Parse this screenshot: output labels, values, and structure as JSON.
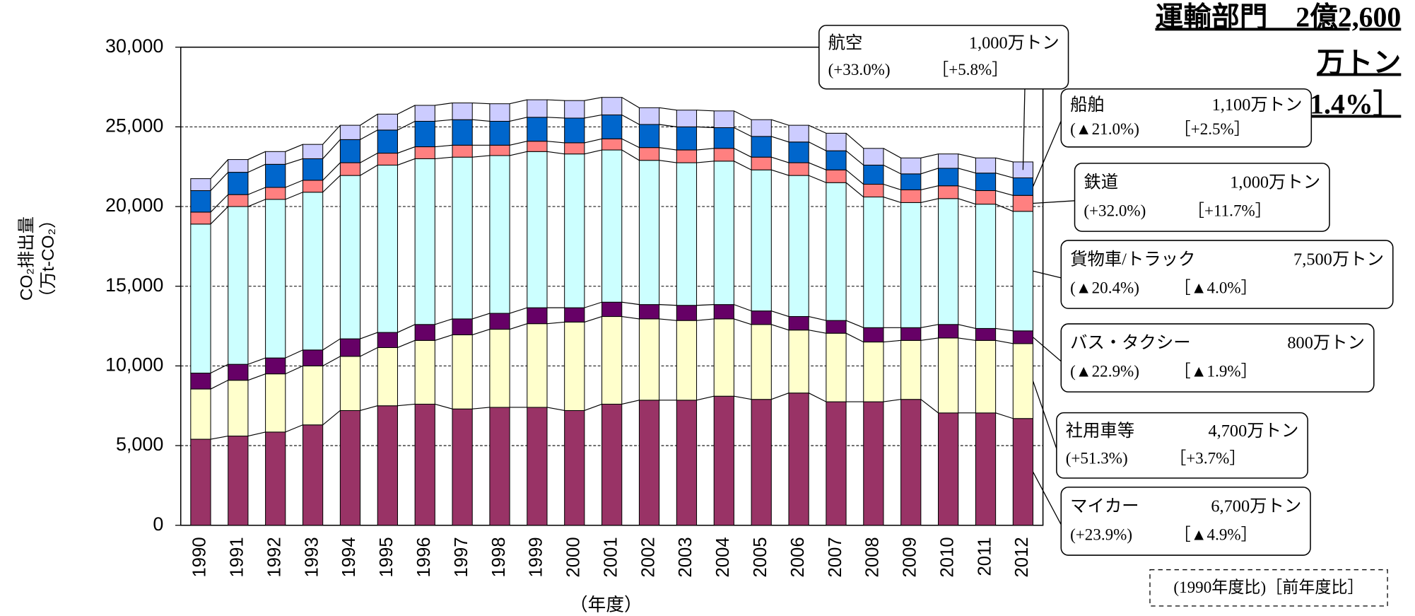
{
  "chart_data": {
    "type": "stacked_bar",
    "title_lines": [
      "運輸部門　2億2,600",
      "万トン",
      "［▲1.4%］"
    ],
    "y_label_lines": [
      "CO₂排出量",
      "（万t-CO₂）"
    ],
    "x_label": "（年度）",
    "note": "(1990年度比)［前年度比］",
    "categories": [
      "1990",
      "1991",
      "1992",
      "1993",
      "1994",
      "1995",
      "1996",
      "1997",
      "1998",
      "1999",
      "2000",
      "2001",
      "2002",
      "2003",
      "2004",
      "2005",
      "2006",
      "2007",
      "2008",
      "2009",
      "2010",
      "2011",
      "2012"
    ],
    "series": [
      {
        "name": "マイカー",
        "color": "#993366",
        "amount": "6,700万トン",
        "change_1990": "(+23.9%)",
        "change_prev": "［▲4.9%］",
        "values": [
          5400,
          5600,
          5850,
          6300,
          7200,
          7500,
          7600,
          7300,
          7400,
          7400,
          7200,
          7600,
          7850,
          7850,
          8100,
          7900,
          8300,
          7750,
          7750,
          7900,
          7050,
          7050,
          6700
        ]
      },
      {
        "name": "社用車等",
        "color": "#ffffcc",
        "amount": "4,700万トン",
        "change_1990": "(+51.3%)",
        "change_prev": "［+3.7%］",
        "values": [
          3150,
          3500,
          3650,
          3700,
          3400,
          3650,
          4000,
          4650,
          4900,
          5250,
          5550,
          5500,
          5100,
          5000,
          4850,
          4700,
          3950,
          4300,
          3750,
          3700,
          4700,
          4550,
          4700
        ]
      },
      {
        "name": "バス・タクシー",
        "color": "#660066",
        "amount": "800万トン",
        "change_1990": "(▲22.9%)",
        "change_prev": "［▲1.9%］",
        "values": [
          1000,
          1000,
          1000,
          1000,
          1100,
          950,
          1000,
          1000,
          1000,
          1000,
          900,
          900,
          900,
          950,
          900,
          850,
          850,
          800,
          900,
          800,
          850,
          750,
          800
        ]
      },
      {
        "name": "貨物車/トラック",
        "color": "#ccffff",
        "amount": "7,500万トン",
        "change_1990": "(▲20.4%)",
        "change_prev": "［▲4.0%］",
        "values": [
          9350,
          9900,
          9950,
          9900,
          10250,
          10500,
          10400,
          10150,
          9900,
          9800,
          9650,
          9550,
          9050,
          8950,
          9000,
          8850,
          8850,
          8650,
          8200,
          7850,
          7900,
          7800,
          7500
        ]
      },
      {
        "name": "鉄道",
        "color": "#ff8080",
        "amount": "1,000万トン",
        "change_1990": "(+32.0%)",
        "change_prev": "［+11.7%］",
        "values": [
          750,
          750,
          750,
          750,
          800,
          750,
          750,
          750,
          650,
          650,
          700,
          700,
          800,
          800,
          800,
          800,
          800,
          800,
          800,
          800,
          800,
          850,
          1000
        ]
      },
      {
        "name": "船舶",
        "color": "#0066cc",
        "amount": "1,100万トン",
        "change_1990": "(▲21.0%)",
        "change_prev": "［+2.5%］",
        "values": [
          1350,
          1400,
          1450,
          1350,
          1450,
          1450,
          1600,
          1600,
          1500,
          1500,
          1550,
          1500,
          1450,
          1450,
          1300,
          1300,
          1300,
          1200,
          1200,
          1000,
          1100,
          1100,
          1100
        ]
      },
      {
        "name": "航空",
        "color": "#ccccff",
        "amount": "1,000万トン",
        "change_1990": "(+33.0%)",
        "change_prev": "［+5.8%］",
        "values": [
          750,
          800,
          800,
          900,
          900,
          1000,
          1000,
          1050,
          1100,
          1100,
          1100,
          1100,
          1050,
          1050,
          1050,
          1050,
          1050,
          1100,
          1050,
          1000,
          900,
          950,
          1000
        ]
      }
    ],
    "ylim": [
      0,
      30000
    ],
    "yticks": [
      0,
      {
        "value": 5000,
        "label": "5,000"
      },
      {
        "value": 10000,
        "label": "10,000"
      },
      {
        "value": 15000,
        "label": "15,000"
      },
      {
        "value": 20000,
        "label": "20,000"
      },
      {
        "value": 25000,
        "label": "25,000"
      },
      {
        "value": 30000,
        "label": "30,000"
      }
    ],
    "grid": true
  }
}
